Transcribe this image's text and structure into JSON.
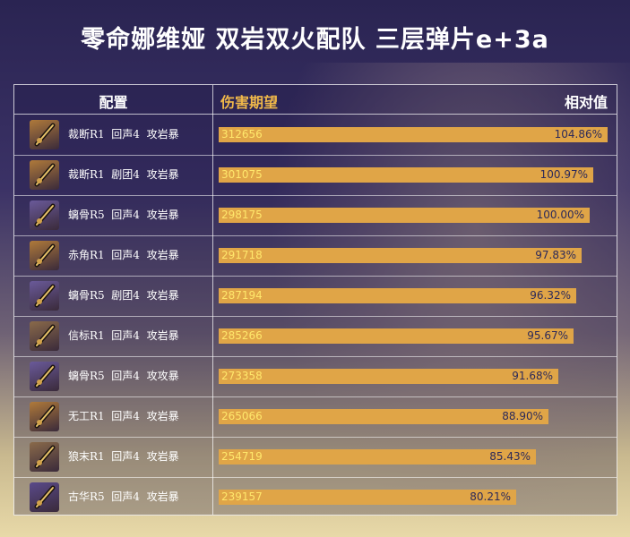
{
  "title": "零命娜维娅 双岩双火配队 三层弹片e+3a",
  "headers": {
    "config": "配置",
    "damage": "伤害期望",
    "relative": "相对值"
  },
  "chart_data": {
    "type": "bar",
    "orientation": "horizontal",
    "title": "零命娜维娅 双岩双火配队 三层弹片e+3a",
    "categories": [
      "裁断R1  回声4  攻岩暴",
      "裁断R1  剧团4  攻岩暴",
      "螭骨R5  回声4  攻岩暴",
      "赤角R1  回声4  攻岩暴",
      "螭骨R5  剧团4  攻岩暴",
      "信标R1  回声4  攻岩暴",
      "螭骨R5  回声4  攻攻暴",
      "无工R1  回声4  攻岩暴",
      "狼末R1  回声4  攻岩暴",
      "古华R5  回声4  攻岩暴"
    ],
    "values": [
      312656,
      301075,
      298175,
      291718,
      287194,
      285266,
      273358,
      265066,
      254719,
      239157
    ],
    "relative": [
      "104.86%",
      "100.97%",
      "100.00%",
      "97.83%",
      "96.32%",
      "95.67%",
      "91.68%",
      "88.90%",
      "85.43%",
      "80.21%"
    ],
    "xlabel": "伤害期望",
    "ylabel": "配置",
    "weapon_icons": [
      "verdict-icon",
      "verdict-icon",
      "redhorn-icon",
      "redhorn-icon",
      "redhorn-icon",
      "beacon-icon",
      "redhorn-icon",
      "unforged-icon",
      "wolf-icon",
      "rainslasher-icon"
    ],
    "icon_bg": [
      "#b07a3a",
      "#b07a3a",
      "#6a5a9a",
      "#b07a3a",
      "#6a5a9a",
      "#8a6a4a",
      "#6a5a9a",
      "#b07a3a",
      "#8a6a4a",
      "#5a4a8a"
    ],
    "bar_color": "#e0a547",
    "value_color": "#ffe76b",
    "relative_color": "#2c2a5a"
  }
}
